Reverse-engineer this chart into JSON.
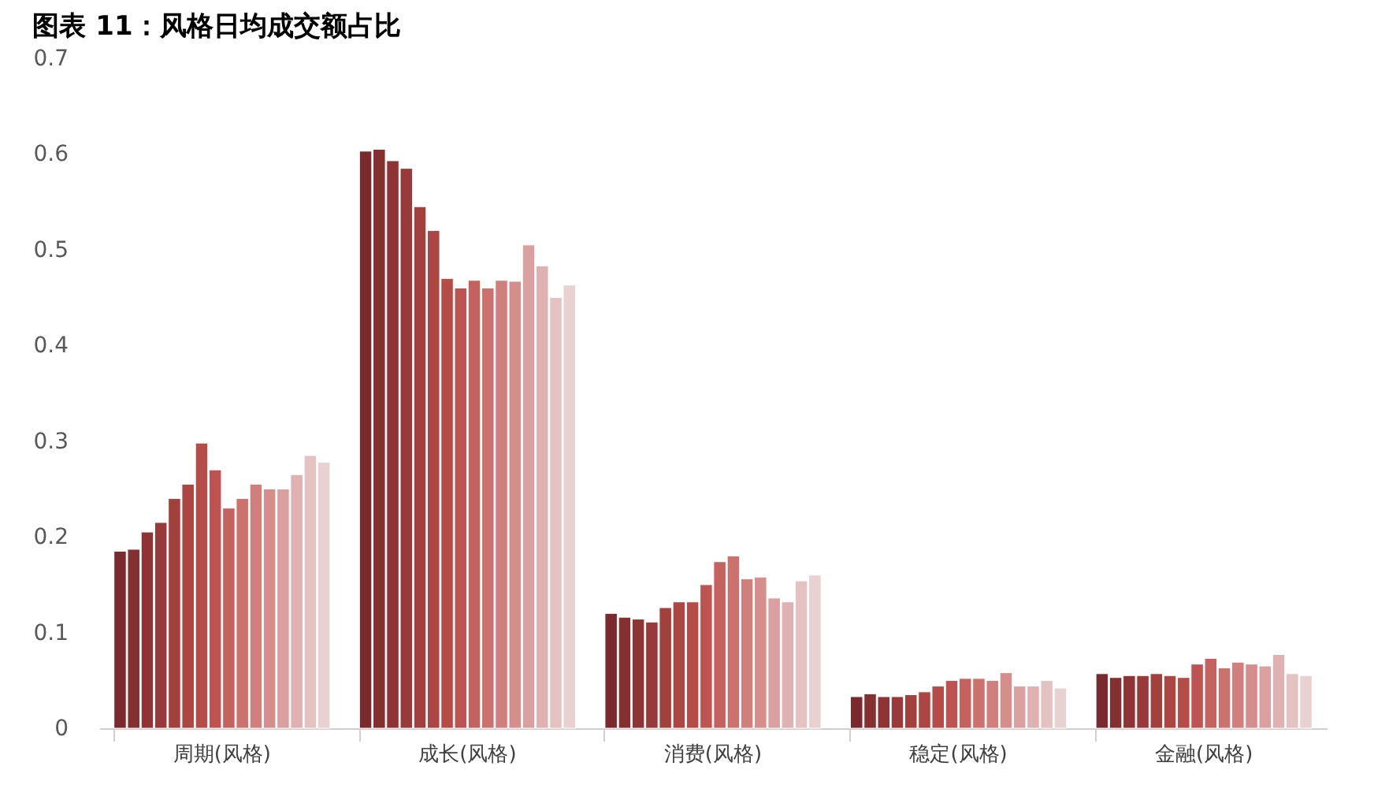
{
  "chart_data": {
    "type": "bar",
    "title": "图表 11：风格日均成交额占比",
    "categories": [
      "周期(风格)",
      "成长(风格)",
      "消费(风格)",
      "稳定(风格)",
      "金融(风格)"
    ],
    "ylim": [
      0,
      0.7
    ],
    "yticks": [
      0,
      0.1,
      0.2,
      0.3,
      0.4,
      0.5,
      0.6,
      0.7
    ],
    "grid": false,
    "legend": false,
    "series": [
      {
        "color": "#7a2a2c",
        "values": [
          0.185,
          0.603,
          0.12,
          0.033,
          0.057
        ]
      },
      {
        "color": "#842f30",
        "values": [
          0.187,
          0.605,
          0.116,
          0.036,
          0.053
        ]
      },
      {
        "color": "#8e3434",
        "values": [
          0.205,
          0.593,
          0.114,
          0.033,
          0.055
        ]
      },
      {
        "color": "#983a39",
        "values": [
          0.215,
          0.585,
          0.111,
          0.033,
          0.055
        ]
      },
      {
        "color": "#a2403d",
        "values": [
          0.24,
          0.545,
          0.126,
          0.035,
          0.057
        ]
      },
      {
        "color": "#ac4642",
        "values": [
          0.255,
          0.52,
          0.132,
          0.038,
          0.055
        ]
      },
      {
        "color": "#b64c47",
        "values": [
          0.298,
          0.47,
          0.132,
          0.044,
          0.053
        ]
      },
      {
        "color": "#bd5452",
        "values": [
          0.27,
          0.46,
          0.15,
          0.05,
          0.067
        ]
      },
      {
        "color": "#c4625f",
        "values": [
          0.23,
          0.468,
          0.174,
          0.052,
          0.073
        ]
      },
      {
        "color": "#cb716e",
        "values": [
          0.24,
          0.46,
          0.18,
          0.052,
          0.063
        ]
      },
      {
        "color": "#d07f7d",
        "values": [
          0.255,
          0.468,
          0.156,
          0.05,
          0.069
        ]
      },
      {
        "color": "#d58e8c",
        "values": [
          0.25,
          0.467,
          0.158,
          0.058,
          0.067
        ]
      },
      {
        "color": "#daa09f",
        "values": [
          0.25,
          0.505,
          0.136,
          0.044,
          0.065
        ]
      },
      {
        "color": "#dfb1b0",
        "values": [
          0.265,
          0.483,
          0.132,
          0.044,
          0.077
        ]
      },
      {
        "color": "#e4c2c1",
        "values": [
          0.285,
          0.45,
          0.154,
          0.05,
          0.057
        ]
      },
      {
        "color": "#e9d1d1",
        "values": [
          0.278,
          0.463,
          0.16,
          0.042,
          0.055
        ]
      }
    ]
  }
}
